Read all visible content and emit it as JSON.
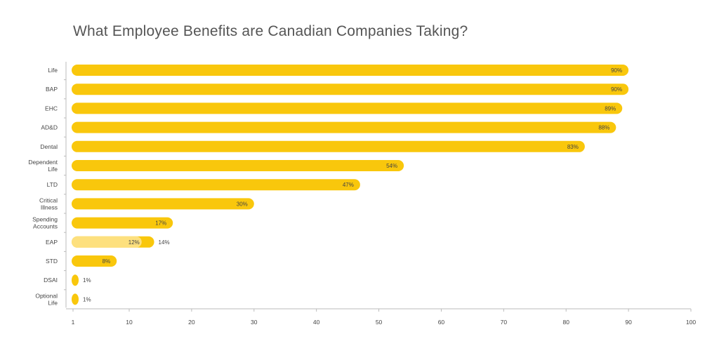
{
  "chart_data": {
    "type": "bar",
    "orientation": "horizontal",
    "title": "What Employee Benefits are Canadian Companies Taking?",
    "xlabel": "",
    "ylabel": "",
    "xlim": [
      1,
      100
    ],
    "x_ticks": [
      1,
      10,
      20,
      30,
      40,
      50,
      60,
      70,
      80,
      90,
      100
    ],
    "grid": false,
    "bar_color": "#F9C70C",
    "secondary_color": "#FDE07E",
    "categories": [
      {
        "label": [
          "Life"
        ],
        "value": 90,
        "value_label": "90%"
      },
      {
        "label": [
          "BAP"
        ],
        "value": 90,
        "value_label": "90%"
      },
      {
        "label": [
          "EHC"
        ],
        "value": 89,
        "value_label": "89%"
      },
      {
        "label": [
          "AD&D"
        ],
        "value": 88,
        "value_label": "88%"
      },
      {
        "label": [
          "Dental"
        ],
        "value": 83,
        "value_label": "83%"
      },
      {
        "label": [
          "Dependent",
          "Life"
        ],
        "value": 54,
        "value_label": "54%"
      },
      {
        "label": [
          "LTD"
        ],
        "value": 47,
        "value_label": "47%"
      },
      {
        "label": [
          "Critical",
          "Illness"
        ],
        "value": 30,
        "value_label": "30%"
      },
      {
        "label": [
          "Spending",
          "Accounts"
        ],
        "value": 17,
        "value_label": "17%"
      },
      {
        "label": [
          "EAP"
        ],
        "value": 14,
        "value_label": "14%",
        "inner_value": 12,
        "inner_label": "12%"
      },
      {
        "label": [
          "STD"
        ],
        "value": 8,
        "value_label": "8%"
      },
      {
        "label": [
          "DSAI"
        ],
        "value": 1,
        "value_label": "1%"
      },
      {
        "label": [
          "Optional",
          "Life"
        ],
        "value": 1,
        "value_label": "1%"
      }
    ]
  }
}
